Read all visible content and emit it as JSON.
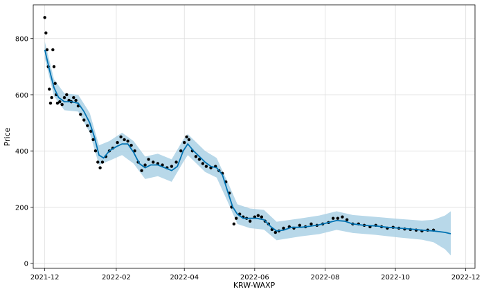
{
  "chart_data": {
    "type": "line",
    "title": "",
    "xlabel": "KRW-WAXP",
    "ylabel": "Price",
    "x_ticks": [
      "2021-12",
      "2022-02",
      "2022-04",
      "2022-06",
      "2022-08",
      "2022-10",
      "2022-12"
    ],
    "y_ticks": [
      "0",
      "200",
      "400",
      "600",
      "800"
    ],
    "xlim": [
      "2021-11-21",
      "2022-12-09"
    ],
    "ylim": [
      -18,
      920
    ],
    "grid": true,
    "colors": {
      "observations": "#000000",
      "forecast_line": "#0072B2",
      "uncertainty_band": "#A6CEE3"
    },
    "series": [
      {
        "type": "scatter",
        "values": [
          [
            "2021-12-01",
            875
          ],
          [
            "2021-12-02",
            820
          ],
          [
            "2021-12-03",
            760
          ],
          [
            "2021-12-04",
            700
          ],
          [
            "2021-12-05",
            620
          ],
          [
            "2021-12-06",
            570
          ],
          [
            "2021-12-07",
            590
          ],
          [
            "2021-12-08",
            760
          ],
          [
            "2021-12-09",
            700
          ],
          [
            "2021-12-10",
            640
          ],
          [
            "2021-12-11",
            600
          ],
          [
            "2021-12-12",
            570
          ],
          [
            "2021-12-14",
            575
          ],
          [
            "2021-12-16",
            565
          ],
          [
            "2021-12-18",
            590
          ],
          [
            "2021-12-20",
            600
          ],
          [
            "2021-12-22",
            580
          ],
          [
            "2021-12-24",
            575
          ],
          [
            "2021-12-26",
            590
          ],
          [
            "2021-12-28",
            580
          ],
          [
            "2021-12-30",
            560
          ],
          [
            "2022-01-01",
            530
          ],
          [
            "2022-01-04",
            510
          ],
          [
            "2022-01-07",
            490
          ],
          [
            "2022-01-10",
            470
          ],
          [
            "2022-01-12",
            440
          ],
          [
            "2022-01-14",
            400
          ],
          [
            "2022-01-16",
            360
          ],
          [
            "2022-01-18",
            340
          ],
          [
            "2022-01-20",
            360
          ],
          [
            "2022-01-23",
            380
          ],
          [
            "2022-01-26",
            400
          ],
          [
            "2022-01-29",
            410
          ],
          [
            "2022-02-02",
            430
          ],
          [
            "2022-02-05",
            450
          ],
          [
            "2022-02-08",
            440
          ],
          [
            "2022-02-11",
            435
          ],
          [
            "2022-02-14",
            420
          ],
          [
            "2022-02-17",
            400
          ],
          [
            "2022-02-20",
            360
          ],
          [
            "2022-02-23",
            330
          ],
          [
            "2022-02-26",
            350
          ],
          [
            "2022-03-01",
            370
          ],
          [
            "2022-03-05",
            360
          ],
          [
            "2022-03-09",
            355
          ],
          [
            "2022-03-13",
            350
          ],
          [
            "2022-03-17",
            340
          ],
          [
            "2022-03-21",
            345
          ],
          [
            "2022-03-25",
            360
          ],
          [
            "2022-03-29",
            400
          ],
          [
            "2022-04-01",
            430
          ],
          [
            "2022-04-03",
            450
          ],
          [
            "2022-04-05",
            440
          ],
          [
            "2022-04-08",
            400
          ],
          [
            "2022-04-11",
            380
          ],
          [
            "2022-04-14",
            370
          ],
          [
            "2022-04-17",
            355
          ],
          [
            "2022-04-20",
            345
          ],
          [
            "2022-04-24",
            340
          ],
          [
            "2022-04-28",
            345
          ],
          [
            "2022-05-01",
            330
          ],
          [
            "2022-05-04",
            320
          ],
          [
            "2022-05-07",
            290
          ],
          [
            "2022-05-10",
            250
          ],
          [
            "2022-05-12",
            200
          ],
          [
            "2022-05-14",
            140
          ],
          [
            "2022-05-16",
            160
          ],
          [
            "2022-05-19",
            175
          ],
          [
            "2022-05-22",
            165
          ],
          [
            "2022-05-25",
            160
          ],
          [
            "2022-05-28",
            150
          ],
          [
            "2022-06-01",
            165
          ],
          [
            "2022-06-04",
            170
          ],
          [
            "2022-06-07",
            165
          ],
          [
            "2022-06-10",
            150
          ],
          [
            "2022-06-13",
            140
          ],
          [
            "2022-06-16",
            120
          ],
          [
            "2022-06-19",
            110
          ],
          [
            "2022-06-22",
            115
          ],
          [
            "2022-06-26",
            125
          ],
          [
            "2022-07-01",
            130
          ],
          [
            "2022-07-05",
            125
          ],
          [
            "2022-07-10",
            135
          ],
          [
            "2022-07-15",
            130
          ],
          [
            "2022-07-20",
            140
          ],
          [
            "2022-07-25",
            135
          ],
          [
            "2022-07-30",
            140
          ],
          [
            "2022-08-04",
            145
          ],
          [
            "2022-08-08",
            160
          ],
          [
            "2022-08-12",
            160
          ],
          [
            "2022-08-16",
            165
          ],
          [
            "2022-08-20",
            155
          ],
          [
            "2022-08-25",
            140
          ],
          [
            "2022-08-30",
            140
          ],
          [
            "2022-09-04",
            135
          ],
          [
            "2022-09-09",
            130
          ],
          [
            "2022-09-14",
            135
          ],
          [
            "2022-09-19",
            130
          ],
          [
            "2022-09-24",
            125
          ],
          [
            "2022-09-29",
            128
          ],
          [
            "2022-10-04",
            125
          ],
          [
            "2022-10-09",
            122
          ],
          [
            "2022-10-14",
            120
          ],
          [
            "2022-10-19",
            118
          ],
          [
            "2022-10-24",
            115
          ],
          [
            "2022-10-29",
            118
          ],
          [
            "2022-11-03",
            118
          ]
        ]
      },
      {
        "type": "line",
        "values": [
          [
            "2021-12-01",
            760
          ],
          [
            "2021-12-05",
            690
          ],
          [
            "2021-12-09",
            625
          ],
          [
            "2021-12-13",
            590
          ],
          [
            "2021-12-18",
            575
          ],
          [
            "2021-12-24",
            575
          ],
          [
            "2021-12-30",
            570
          ],
          [
            "2022-01-04",
            540
          ],
          [
            "2022-01-09",
            500
          ],
          [
            "2022-01-13",
            450
          ],
          [
            "2022-01-17",
            385
          ],
          [
            "2022-01-21",
            375
          ],
          [
            "2022-01-26",
            400
          ],
          [
            "2022-02-01",
            415
          ],
          [
            "2022-02-06",
            425
          ],
          [
            "2022-02-11",
            425
          ],
          [
            "2022-02-16",
            395
          ],
          [
            "2022-02-21",
            355
          ],
          [
            "2022-02-26",
            340
          ],
          [
            "2022-03-03",
            350
          ],
          [
            "2022-03-09",
            350
          ],
          [
            "2022-03-15",
            340
          ],
          [
            "2022-03-21",
            330
          ],
          [
            "2022-03-26",
            345
          ],
          [
            "2022-03-31",
            400
          ],
          [
            "2022-04-04",
            425
          ],
          [
            "2022-04-09",
            400
          ],
          [
            "2022-04-14",
            380
          ],
          [
            "2022-04-19",
            360
          ],
          [
            "2022-04-24",
            345
          ],
          [
            "2022-04-29",
            340
          ],
          [
            "2022-05-04",
            315
          ],
          [
            "2022-05-09",
            250
          ],
          [
            "2022-05-13",
            200
          ],
          [
            "2022-05-17",
            175
          ],
          [
            "2022-05-22",
            160
          ],
          [
            "2022-05-28",
            160
          ],
          [
            "2022-06-03",
            160
          ],
          [
            "2022-06-09",
            155
          ],
          [
            "2022-06-15",
            130
          ],
          [
            "2022-06-20",
            115
          ],
          [
            "2022-06-26",
            118
          ],
          [
            "2022-07-03",
            128
          ],
          [
            "2022-07-11",
            128
          ],
          [
            "2022-07-19",
            132
          ],
          [
            "2022-07-27",
            137
          ],
          [
            "2022-08-04",
            145
          ],
          [
            "2022-08-11",
            152
          ],
          [
            "2022-08-18",
            150
          ],
          [
            "2022-08-25",
            140
          ],
          [
            "2022-09-04",
            135
          ],
          [
            "2022-09-14",
            133
          ],
          [
            "2022-09-24",
            128
          ],
          [
            "2022-10-04",
            125
          ],
          [
            "2022-10-14",
            122
          ],
          [
            "2022-10-24",
            118
          ],
          [
            "2022-11-03",
            115
          ],
          [
            "2022-11-13",
            110
          ],
          [
            "2022-11-18",
            105
          ]
        ]
      },
      {
        "type": "band",
        "values": [
          [
            "2021-12-01",
            790,
            730
          ],
          [
            "2021-12-09",
            655,
            595
          ],
          [
            "2021-12-18",
            605,
            545
          ],
          [
            "2021-12-30",
            600,
            540
          ],
          [
            "2022-01-09",
            535,
            465
          ],
          [
            "2022-01-17",
            420,
            350
          ],
          [
            "2022-01-26",
            435,
            365
          ],
          [
            "2022-02-06",
            465,
            385
          ],
          [
            "2022-02-16",
            435,
            355
          ],
          [
            "2022-02-26",
            380,
            300
          ],
          [
            "2022-03-09",
            390,
            310
          ],
          [
            "2022-03-21",
            370,
            290
          ],
          [
            "2022-03-31",
            440,
            360
          ],
          [
            "2022-04-04",
            460,
            385
          ],
          [
            "2022-04-19",
            400,
            325
          ],
          [
            "2022-04-29",
            375,
            305
          ],
          [
            "2022-05-09",
            285,
            215
          ],
          [
            "2022-05-17",
            210,
            140
          ],
          [
            "2022-05-28",
            195,
            125
          ],
          [
            "2022-06-09",
            190,
            120
          ],
          [
            "2022-06-20",
            148,
            82
          ],
          [
            "2022-07-11",
            160,
            96
          ],
          [
            "2022-07-27",
            170,
            104
          ],
          [
            "2022-08-11",
            185,
            119
          ],
          [
            "2022-08-25",
            172,
            108
          ],
          [
            "2022-09-14",
            165,
            101
          ],
          [
            "2022-10-04",
            158,
            92
          ],
          [
            "2022-10-24",
            152,
            84
          ],
          [
            "2022-11-03",
            155,
            75
          ],
          [
            "2022-11-13",
            170,
            50
          ],
          [
            "2022-11-18",
            185,
            28
          ]
        ]
      }
    ]
  }
}
